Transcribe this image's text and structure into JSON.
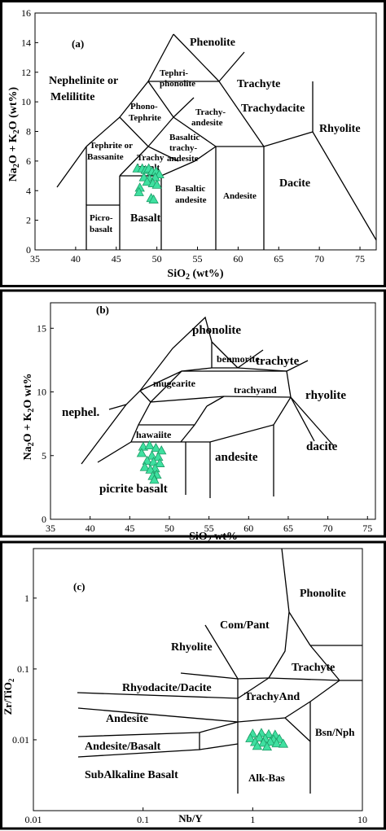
{
  "chart_data": [
    {
      "panel": "(a)",
      "type": "scatter",
      "xlabel": "SiO2 (wt%)",
      "ylabel": "Na2O + K2O (wt%)",
      "xlim": [
        35,
        77
      ],
      "ylim": [
        0,
        16
      ],
      "xticks": [
        "35",
        "40",
        "45",
        "50",
        "55",
        "60",
        "65",
        "70",
        "75"
      ],
      "yticks": [
        "0",
        "2",
        "4",
        "6",
        "8",
        "10",
        "12",
        "14",
        "16"
      ],
      "field_labels": [
        "Phenolite",
        "Tephri-",
        "phonolite",
        "Trachyte",
        "Nephelinite or",
        "Melilitite",
        "Phono-",
        "Tephrite",
        "Trachy-",
        "andesite",
        "Trachydacite",
        "Rhyolite",
        "Tephrite or",
        "Bassanite",
        "Basaltic",
        "trachy-",
        "andesite",
        "Trachy",
        "basalt",
        "Basaltic",
        "andesite",
        "Andesite",
        "Dacite",
        "Picro-",
        "basalt",
        "Basalt"
      ],
      "marker": "triangle",
      "marker_color": "#3fe0a0",
      "x": [
        47.6,
        48.2,
        48.6,
        49.0,
        49.4,
        49.9,
        50.3,
        48.4,
        49.1,
        49.8,
        48.8,
        49.5,
        47.9,
        50.0,
        47.8,
        49.3,
        49.6
      ],
      "y": [
        5.5,
        5.5,
        5.4,
        5.5,
        5.3,
        5.3,
        5.1,
        4.9,
        4.8,
        4.9,
        4.6,
        4.5,
        4.2,
        4.4,
        3.9,
        3.5,
        3.4
      ]
    },
    {
      "panel": "(b)",
      "type": "scatter",
      "xlabel": "SiO2 wt%",
      "ylabel": "Na2O + K2O wt%",
      "xlim": [
        35,
        76
      ],
      "ylim": [
        0,
        17
      ],
      "xticks": [
        "35",
        "40",
        "45",
        "50",
        "55",
        "60",
        "65",
        "70",
        "75"
      ],
      "yticks": [
        "0",
        "5",
        "10",
        "15"
      ],
      "field_labels": [
        "phonolite",
        "trachyte",
        "benmorite",
        "rhyolite",
        "mugearite",
        "trachyand",
        "nephel.",
        "hawaiite",
        "dacite",
        "andesite",
        "picrite basalt"
      ],
      "marker": "triangle",
      "marker_color": "#3fe0a0",
      "x": [
        46.7,
        47.5,
        48.3,
        49.0,
        46.5,
        47.8,
        48.6,
        47.2,
        48.0,
        48.8,
        46.9,
        48.2,
        47.6,
        48.4,
        47.9,
        48.1
      ],
      "y": [
        5.7,
        5.8,
        5.6,
        5.4,
        5.2,
        5.0,
        4.9,
        4.6,
        4.5,
        4.4,
        4.1,
        4.0,
        3.9,
        3.5,
        3.4,
        3.1
      ]
    },
    {
      "panel": "(c)",
      "type": "scatter",
      "xlabel": "Nb/Y",
      "ylabel": "Zr/TiO2",
      "xscale": "log",
      "yscale": "log",
      "xlim": [
        0.01,
        10
      ],
      "ylim": [
        0.001,
        5
      ],
      "xticks": [
        "0.01",
        "0.1",
        "1",
        "10"
      ],
      "yticks": [
        "0.01",
        "0.1",
        "1"
      ],
      "field_labels": [
        "Phonolite",
        "Com/Pant",
        "Rhyolite",
        "Trachyte",
        "Rhyodacite/Dacite",
        "TrachyAnd",
        "Andesite",
        "Bsn/Nph",
        "Andesite/Basalt",
        "SubAlkaline Basalt",
        "Alk-Bas"
      ],
      "marker": "triangle",
      "marker_color": "#3fe0a0",
      "x": [
        1.0,
        1.2,
        1.4,
        1.6,
        0.95,
        1.15,
        1.3,
        1.55,
        1.75,
        1.05,
        1.25,
        1.45,
        1.65,
        1.9,
        1.1,
        1.35
      ],
      "y": [
        0.0122,
        0.0125,
        0.012,
        0.0118,
        0.0105,
        0.0108,
        0.0104,
        0.0101,
        0.0103,
        0.0093,
        0.0091,
        0.0094,
        0.0089,
        0.0088,
        0.0082,
        0.008
      ]
    }
  ]
}
